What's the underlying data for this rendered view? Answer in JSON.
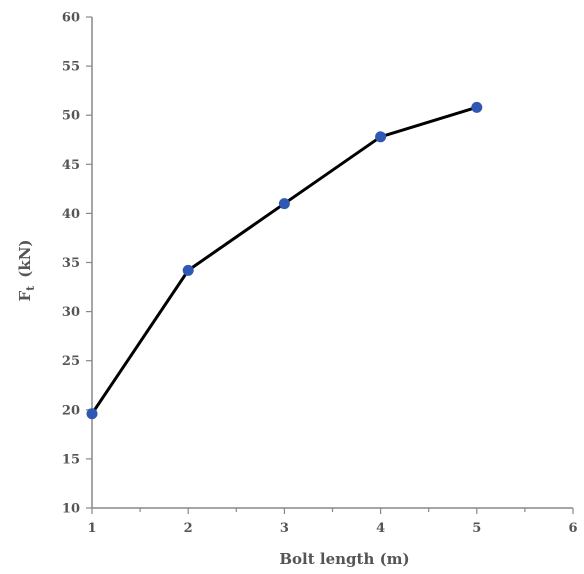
{
  "chart_data": {
    "type": "line",
    "title": "",
    "xlabel": "Bolt length (m)",
    "ylabel_main": "F",
    "ylabel_sub": "t",
    "ylabel_unit": "(kN)",
    "xlim": [
      1,
      6
    ],
    "ylim": [
      10,
      60
    ],
    "xticks": [
      1,
      2,
      3,
      4,
      5,
      6
    ],
    "yticks": [
      10,
      15,
      20,
      25,
      30,
      35,
      40,
      45,
      50,
      55,
      60
    ],
    "grid": false,
    "legend": "none",
    "series": [
      {
        "x": [
          1,
          2,
          3,
          4,
          5
        ],
        "values": [
          19.6,
          34.2,
          41.0,
          47.8,
          50.8
        ],
        "line_color": "#000000",
        "marker_color": "#2f58b5"
      }
    ]
  }
}
